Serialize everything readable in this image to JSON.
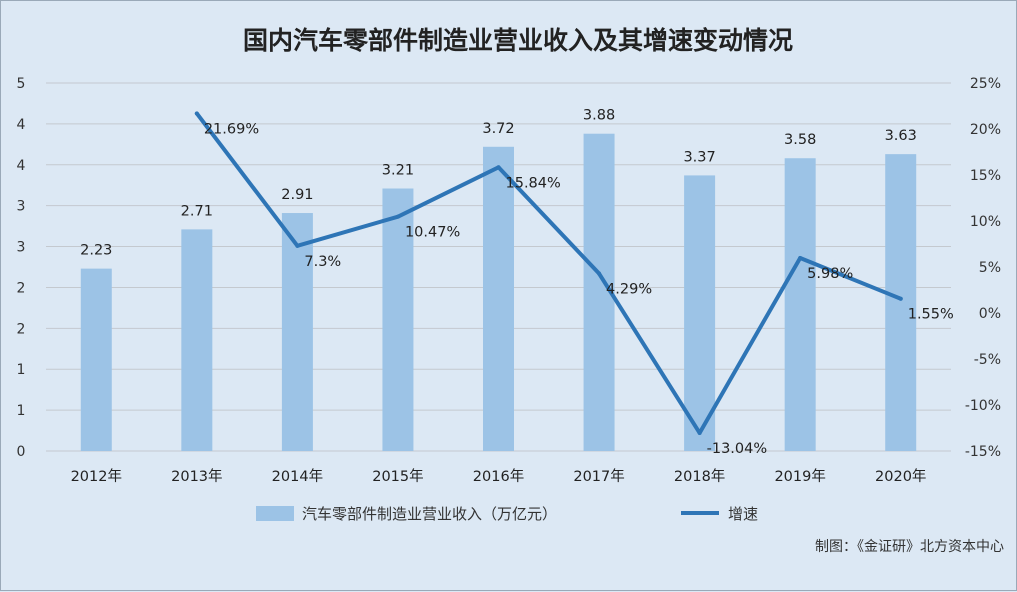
{
  "title": "国内汽车零部件制造业营业收入及其增速变动情况",
  "source_note": "制图：《金证研》北方资本中心",
  "chart_data": {
    "type": "bar",
    "categories": [
      "2012年",
      "2013年",
      "2014年",
      "2015年",
      "2016年",
      "2017年",
      "2018年",
      "2019年",
      "2020年"
    ],
    "series": [
      {
        "name": "汽车零部件制造业营业收入（万亿元）",
        "type": "bar",
        "axis": "left",
        "color": "#9cc3e6",
        "values": [
          2.23,
          2.71,
          2.91,
          3.21,
          3.72,
          3.88,
          3.37,
          3.58,
          3.63
        ],
        "data_labels": [
          "2.23",
          "2.71",
          "2.91",
          "3.21",
          "3.72",
          "3.88",
          "3.37",
          "3.58",
          "3.63"
        ]
      },
      {
        "name": "增速",
        "type": "line",
        "axis": "right",
        "color": "#2e75b6",
        "values": [
          null,
          21.69,
          7.3,
          10.47,
          15.84,
          4.29,
          -13.04,
          5.98,
          1.55
        ],
        "data_labels": [
          "",
          "21.69%",
          "7.3%",
          "10.47%",
          "15.84%",
          "4.29%",
          "-13.04%",
          "5.98%",
          "1.55%"
        ]
      }
    ],
    "left_axis": {
      "tick_labels": [
        "0",
        "1",
        "1",
        "2",
        "2",
        "3",
        "3",
        "4",
        "4",
        "5"
      ]
    },
    "right_axis": {
      "range": [
        -15,
        25
      ],
      "tick_labels": [
        "-15%",
        "-10%",
        "-5%",
        "0%",
        "5%",
        "10%",
        "15%",
        "20%",
        "25%"
      ]
    },
    "grid": true,
    "legend_position": "bottom"
  }
}
